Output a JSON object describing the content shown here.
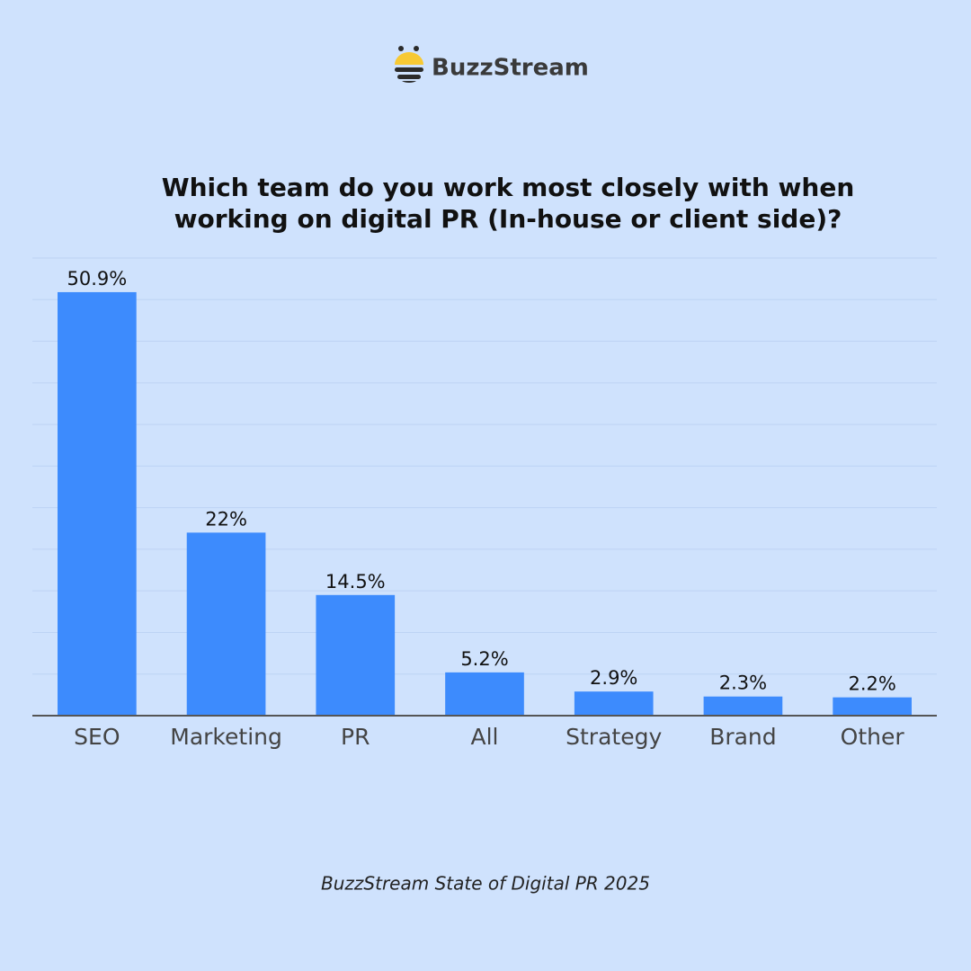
{
  "brand": "BuzzStream",
  "chart_data": {
    "type": "bar",
    "title": [
      "Which team do you work most closely with when",
      "working on digital PR (In-house or client side)?"
    ],
    "categories": [
      "SEO",
      "Marketing",
      "PR",
      "All",
      "Strategy",
      "Brand",
      "Other"
    ],
    "values": [
      50.9,
      22,
      14.5,
      5.2,
      2.9,
      2.3,
      2.2
    ],
    "value_labels": [
      "50.9%",
      "22%",
      "14.5%",
      "5.2%",
      "2.9%",
      "2.3%",
      "2.2%"
    ],
    "color": "#3d8bfd",
    "ylim": [
      0,
      55
    ],
    "yticks": [
      0,
      5,
      10,
      15,
      20,
      25,
      30,
      35,
      40,
      45,
      50,
      55
    ],
    "show_ytick_labels": false,
    "grid": true
  },
  "source": "BuzzStream State of Digital PR 2025"
}
